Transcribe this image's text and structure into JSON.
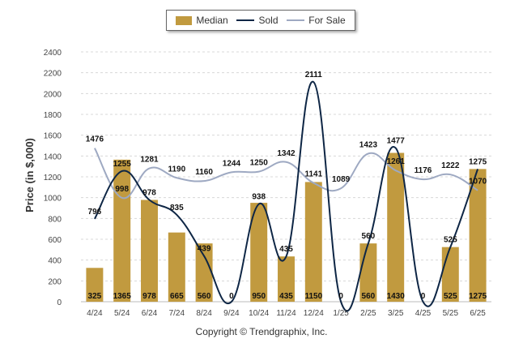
{
  "legend": {
    "median_label": "Median",
    "sold_label": "Sold",
    "for_sale_label": "For Sale"
  },
  "colors": {
    "median": "#C19A3F",
    "sold": "#0E2645",
    "for_sale": "#9EA9C2",
    "grid": "#d8d8d8"
  },
  "copyright": "Copyright © Trendgraphix, Inc.",
  "chart_data": {
    "type": "bar",
    "categories": [
      "4/24",
      "5/24",
      "6/24",
      "7/24",
      "8/24",
      "9/24",
      "10/24",
      "11/24",
      "12/24",
      "1/25",
      "2/25",
      "3/25",
      "4/25",
      "5/25",
      "6/25"
    ],
    "ylabel": "Price (in $,000)",
    "ylim": [
      0,
      2400
    ],
    "yticks": [
      0,
      200,
      400,
      600,
      800,
      1000,
      1200,
      1400,
      1600,
      1800,
      2000,
      2200,
      2400
    ],
    "grid": true,
    "legend_position": "top-center",
    "series": [
      {
        "name": "Median",
        "type": "bar",
        "values": [
          325,
          1365,
          978,
          665,
          560,
          0,
          950,
          435,
          1150,
          0,
          560,
          1430,
          0,
          525,
          1275
        ]
      },
      {
        "name": "Sold",
        "type": "line",
        "values": [
          796,
          1255,
          978,
          835,
          439,
          0,
          938,
          435,
          2111,
          0,
          560,
          1477,
          0,
          525,
          1275
        ]
      },
      {
        "name": "For Sale",
        "type": "line",
        "values": [
          1476,
          998,
          1281,
          1190,
          1160,
          1244,
          1250,
          1342,
          1141,
          1089,
          1423,
          1261,
          1176,
          1222,
          1070
        ]
      }
    ],
    "bar_labels": [
      "325",
      "1365",
      "978",
      "665",
      "560",
      "0",
      "950",
      "435",
      "1150",
      "0",
      "560",
      "1430",
      "0",
      "525",
      "1275"
    ],
    "sold_labels": [
      "796",
      "1255",
      "978",
      "835",
      "439",
      "0",
      "938",
      "435",
      "2111",
      "0",
      "560",
      "1477",
      "0",
      "525",
      "1275"
    ],
    "for_sale_labels": [
      "1476",
      "998",
      "1281",
      "1190",
      "1160",
      "1244",
      "1250",
      "1342",
      "1141",
      "1089",
      "1423",
      "1261",
      "1176",
      "1222",
      "1070"
    ]
  }
}
